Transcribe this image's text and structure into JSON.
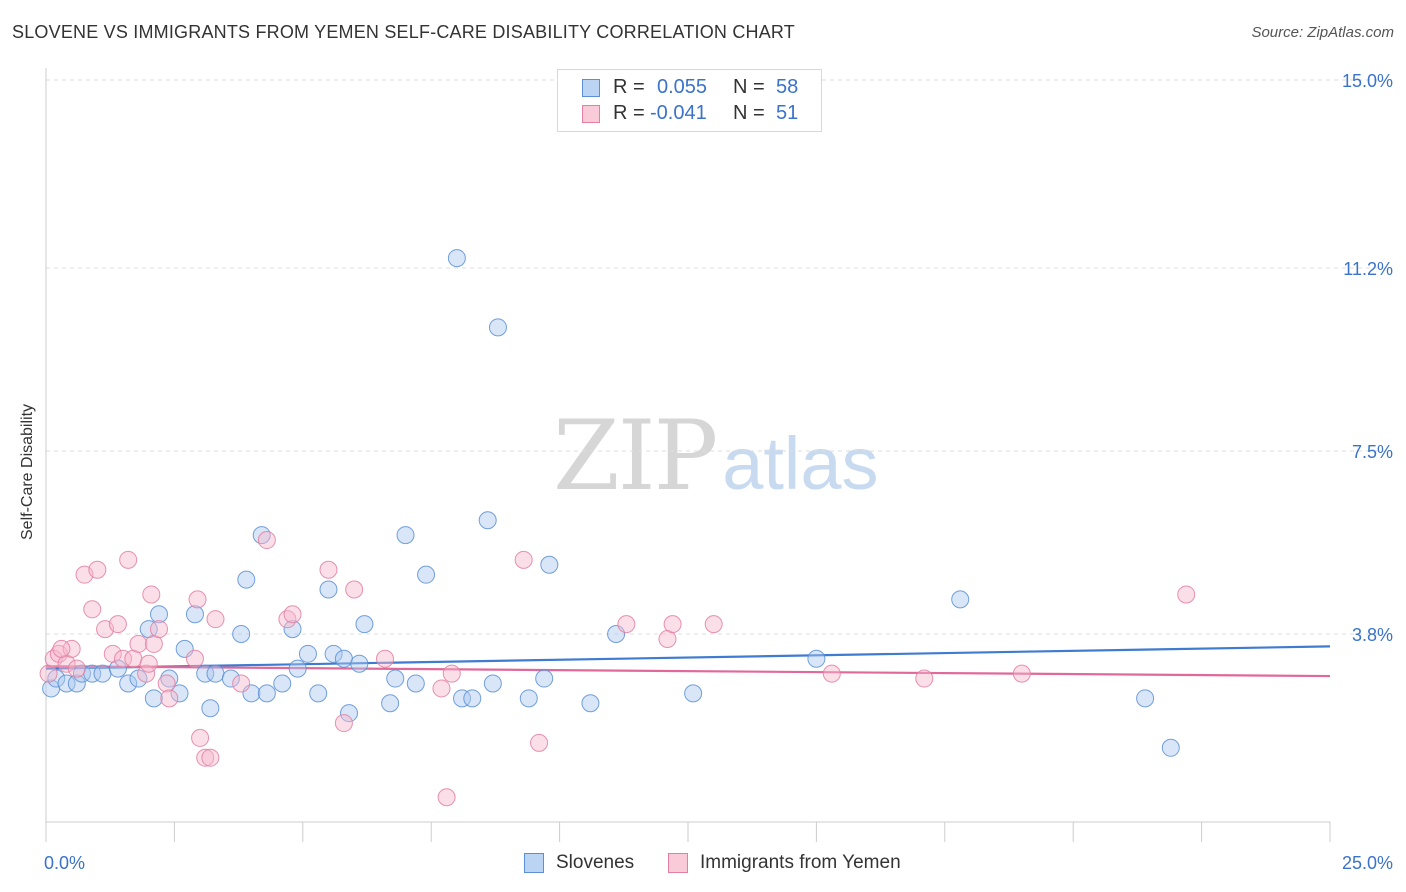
{
  "title": "SLOVENE VS IMMIGRANTS FROM YEMEN SELF-CARE DISABILITY CORRELATION CHART",
  "source": "Source: ZipAtlas.com",
  "watermark": {
    "zip": "ZIP",
    "atlas": "atlas"
  },
  "legend": {
    "rows": [
      {
        "r_label": "R =",
        "r_value": "0.055",
        "n_label": "N =",
        "n_value": "58"
      },
      {
        "r_label": "R =",
        "r_value": "-0.041",
        "n_label": "N =",
        "n_value": "51"
      }
    ]
  },
  "colors": {
    "blue_fill": "#aac8f0",
    "blue_stroke": "#5b8fd6",
    "blue_line": "#3f7bd0",
    "pink_fill": "#f6b8cb",
    "pink_stroke": "#e37fa0",
    "pink_line": "#e0699a",
    "tick_label": "#3a73c9",
    "grid": "#dddddd"
  },
  "chart_data": {
    "type": "scatter",
    "title": "SLOVENE VS IMMIGRANTS FROM YEMEN SELF-CARE DISABILITY CORRELATION CHART",
    "xlabel": "",
    "ylabel": "Self-Care Disability",
    "xlim": [
      0,
      25
    ],
    "ylim": [
      0,
      15.0
    ],
    "x_tick_labels": [
      "0.0%",
      "25.0%"
    ],
    "y_ticks": [
      3.8,
      7.5,
      11.2,
      15.0
    ],
    "y_tick_labels": [
      "3.8%",
      "7.5%",
      "11.2%",
      "15.0%"
    ],
    "grid": true,
    "legend_position": "bottom",
    "series": [
      {
        "name": "Slovenes",
        "color": "blue",
        "trend": {
          "x": [
            0,
            25
          ],
          "y": [
            3.1,
            3.55
          ]
        },
        "points": [
          [
            0.1,
            2.7
          ],
          [
            0.2,
            2.9
          ],
          [
            0.4,
            2.8
          ],
          [
            0.6,
            2.8
          ],
          [
            0.7,
            3.0
          ],
          [
            0.9,
            3.0
          ],
          [
            1.1,
            3.0
          ],
          [
            1.4,
            3.1
          ],
          [
            1.6,
            2.8
          ],
          [
            1.8,
            2.9
          ],
          [
            2.0,
            3.9
          ],
          [
            2.1,
            2.5
          ],
          [
            2.2,
            4.2
          ],
          [
            2.4,
            2.9
          ],
          [
            2.6,
            2.6
          ],
          [
            2.7,
            3.5
          ],
          [
            2.9,
            4.2
          ],
          [
            3.1,
            3.0
          ],
          [
            3.2,
            2.3
          ],
          [
            3.3,
            3.0
          ],
          [
            3.6,
            2.9
          ],
          [
            3.8,
            3.8
          ],
          [
            3.9,
            4.9
          ],
          [
            4.0,
            2.6
          ],
          [
            4.2,
            5.8
          ],
          [
            4.3,
            2.6
          ],
          [
            4.6,
            2.8
          ],
          [
            4.8,
            3.9
          ],
          [
            4.9,
            3.1
          ],
          [
            5.1,
            3.4
          ],
          [
            5.3,
            2.6
          ],
          [
            5.5,
            4.7
          ],
          [
            5.6,
            3.4
          ],
          [
            5.8,
            3.3
          ],
          [
            5.9,
            2.2
          ],
          [
            6.1,
            3.2
          ],
          [
            6.2,
            4.0
          ],
          [
            6.7,
            2.4
          ],
          [
            6.8,
            2.9
          ],
          [
            7.0,
            5.8
          ],
          [
            7.2,
            2.8
          ],
          [
            7.4,
            5.0
          ],
          [
            8.0,
            11.4
          ],
          [
            8.1,
            2.5
          ],
          [
            8.3,
            2.5
          ],
          [
            8.6,
            6.1
          ],
          [
            8.7,
            2.8
          ],
          [
            8.8,
            10.0
          ],
          [
            9.4,
            2.5
          ],
          [
            9.7,
            2.9
          ],
          [
            9.8,
            5.2
          ],
          [
            10.6,
            2.4
          ],
          [
            11.1,
            3.8
          ],
          [
            12.6,
            2.6
          ],
          [
            15.0,
            3.3
          ],
          [
            17.8,
            4.5
          ],
          [
            21.4,
            2.5
          ],
          [
            21.9,
            1.5
          ]
        ]
      },
      {
        "name": "Immigrants from Yemen",
        "color": "pink",
        "trend": {
          "x": [
            0,
            25
          ],
          "y": [
            3.15,
            2.95
          ]
        },
        "points": [
          [
            0.05,
            3.0
          ],
          [
            0.15,
            3.3
          ],
          [
            0.25,
            3.4
          ],
          [
            0.4,
            3.2
          ],
          [
            0.5,
            3.5
          ],
          [
            0.6,
            3.1
          ],
          [
            0.75,
            5.0
          ],
          [
            0.9,
            4.3
          ],
          [
            1.0,
            5.1
          ],
          [
            1.15,
            3.9
          ],
          [
            1.3,
            3.4
          ],
          [
            1.4,
            4.0
          ],
          [
            1.5,
            3.3
          ],
          [
            1.6,
            5.3
          ],
          [
            1.7,
            3.3
          ],
          [
            1.8,
            3.6
          ],
          [
            1.95,
            3.0
          ],
          [
            2.0,
            3.2
          ],
          [
            2.05,
            4.6
          ],
          [
            2.1,
            3.6
          ],
          [
            2.2,
            3.9
          ],
          [
            2.35,
            2.8
          ],
          [
            2.4,
            2.5
          ],
          [
            2.9,
            3.3
          ],
          [
            2.95,
            4.5
          ],
          [
            3.0,
            1.7
          ],
          [
            3.1,
            1.3
          ],
          [
            3.2,
            1.3
          ],
          [
            3.3,
            4.1
          ],
          [
            3.8,
            2.8
          ],
          [
            4.3,
            5.7
          ],
          [
            4.7,
            4.1
          ],
          [
            4.8,
            4.2
          ],
          [
            5.5,
            5.1
          ],
          [
            5.8,
            2.0
          ],
          [
            6.0,
            4.7
          ],
          [
            6.6,
            3.3
          ],
          [
            7.7,
            2.7
          ],
          [
            7.8,
            0.5
          ],
          [
            7.9,
            3.0
          ],
          [
            9.3,
            5.3
          ],
          [
            9.6,
            1.6
          ],
          [
            11.3,
            4.0
          ],
          [
            12.1,
            3.7
          ],
          [
            12.2,
            4.0
          ],
          [
            13.0,
            4.0
          ],
          [
            15.3,
            3.0
          ],
          [
            17.1,
            2.9
          ],
          [
            19.0,
            3.0
          ],
          [
            22.2,
            4.6
          ],
          [
            0.3,
            3.5
          ]
        ]
      }
    ]
  },
  "bottom_legend": [
    {
      "label": "Slovenes"
    },
    {
      "label": "Immigrants from Yemen"
    }
  ]
}
